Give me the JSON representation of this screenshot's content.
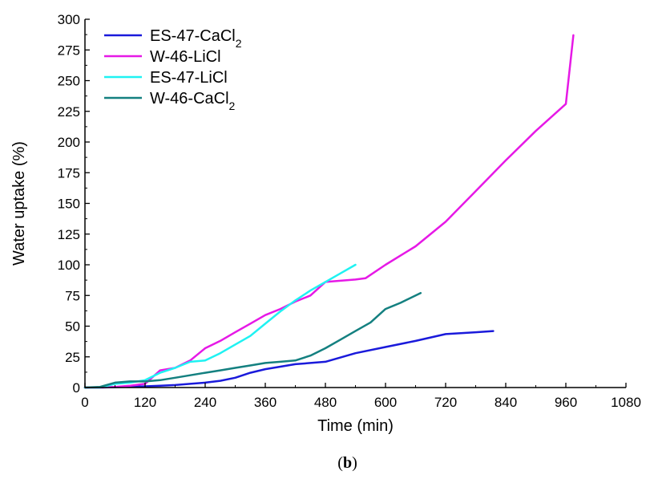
{
  "chart_data": {
    "type": "line",
    "xlabel": "Time (min)",
    "ylabel": "Water uptake (%)",
    "xlim": [
      0,
      1080
    ],
    "ylim": [
      0,
      300
    ],
    "xticks": [
      0,
      120,
      240,
      360,
      480,
      600,
      720,
      840,
      960,
      1080
    ],
    "yticks": [
      0,
      25,
      50,
      75,
      100,
      125,
      150,
      175,
      200,
      225,
      250,
      275,
      300
    ],
    "xtick_labels": [
      "0",
      "120",
      "240",
      "360",
      "480",
      "600",
      "720",
      "840",
      "960",
      "1080"
    ],
    "ytick_labels": [
      "0",
      "25",
      "50",
      "75",
      "100",
      "125",
      "150",
      "175",
      "200",
      "225",
      "250",
      "275",
      "300"
    ],
    "caption": "(b)",
    "legend_position": "top-left",
    "grid": false,
    "series": [
      {
        "name": "ES-47-CaCl",
        "name_subscript": "2",
        "color": "#1a1adb",
        "x": [
          0,
          30,
          60,
          90,
          120,
          150,
          180,
          210,
          240,
          270,
          300,
          330,
          360,
          390,
          420,
          450,
          480,
          540,
          600,
          660,
          720,
          780,
          815
        ],
        "y": [
          0,
          0,
          0.3,
          0.6,
          1,
          1.5,
          2,
          3,
          4,
          5.5,
          8,
          12,
          15,
          17,
          19,
          20,
          21,
          28,
          33,
          38,
          43.5,
          45,
          46
        ]
      },
      {
        "name": "W-46-LiCl",
        "name_subscript": "",
        "color": "#e619e6",
        "x": [
          0,
          30,
          60,
          90,
          120,
          150,
          180,
          210,
          240,
          270,
          300,
          330,
          360,
          390,
          420,
          450,
          480,
          540,
          560,
          600,
          660,
          720,
          780,
          840,
          900,
          960,
          975
        ],
        "y": [
          0,
          0,
          0.5,
          1.5,
          3,
          14,
          16,
          22,
          32,
          38,
          45,
          52,
          59,
          64,
          70,
          75,
          86,
          88,
          89,
          100,
          115,
          135,
          160,
          185,
          209,
          231,
          287
        ]
      },
      {
        "name": "ES-47-LiCl",
        "name_subscript": "",
        "color": "#1ff2f2",
        "x": [
          0,
          30,
          60,
          90,
          120,
          150,
          180,
          210,
          240,
          270,
          300,
          330,
          360,
          390,
          420,
          450,
          480,
          510,
          540
        ],
        "y": [
          0,
          0,
          3,
          4,
          6,
          12,
          16,
          21,
          22,
          28,
          35,
          42,
          52,
          62,
          71,
          79,
          86,
          93,
          100
        ]
      },
      {
        "name": "W-46-CaCl",
        "name_subscript": "2",
        "color": "#148080",
        "x": [
          0,
          30,
          60,
          90,
          120,
          150,
          180,
          210,
          240,
          270,
          300,
          330,
          360,
          390,
          420,
          450,
          480,
          510,
          540,
          570,
          600,
          630,
          670
        ],
        "y": [
          0,
          0.5,
          4,
          5,
          5,
          6,
          8,
          10,
          12,
          14,
          16,
          18,
          20,
          21,
          22,
          26,
          32,
          39,
          46,
          53,
          64,
          69,
          77
        ]
      }
    ]
  }
}
